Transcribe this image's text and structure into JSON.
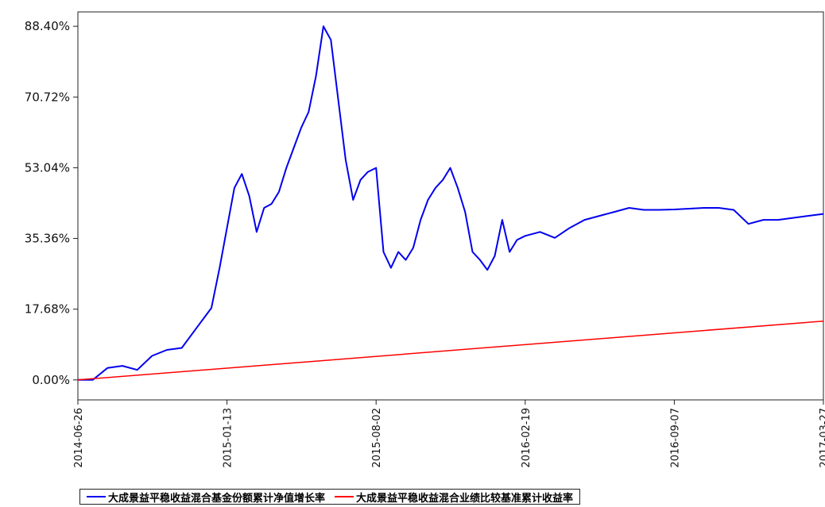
{
  "chart_data": {
    "type": "line",
    "ylim": [
      -5,
      92
    ],
    "yticks": [
      "0.00%",
      "17.68%",
      "35.36%",
      "53.04%",
      "70.72%",
      "88.40%"
    ],
    "ytick_values": [
      0,
      17.68,
      35.36,
      53.04,
      70.72,
      88.4
    ],
    "xticks": [
      "2014-06-26",
      "2015-01-13",
      "2015-08-02",
      "2016-02-19",
      "2016-09-07",
      "2017-03-27"
    ],
    "grid": false,
    "legend_position": "bottom",
    "series": [
      {
        "name": "大成景益平稳收益混合基金份额累计净值增长率",
        "color": "#0000ee",
        "x": [
          "2014-06-26",
          "2014-07-16",
          "2014-08-05",
          "2014-08-25",
          "2014-09-14",
          "2014-10-04",
          "2014-10-24",
          "2014-11-13",
          "2014-12-03",
          "2014-12-23",
          "2015-01-03",
          "2015-01-13",
          "2015-01-23",
          "2015-02-02",
          "2015-02-12",
          "2015-02-22",
          "2015-03-04",
          "2015-03-14",
          "2015-03-24",
          "2015-04-03",
          "2015-04-13",
          "2015-04-23",
          "2015-05-03",
          "2015-05-13",
          "2015-05-23",
          "2015-06-02",
          "2015-06-12",
          "2015-06-22",
          "2015-07-02",
          "2015-07-12",
          "2015-07-22",
          "2015-08-02",
          "2015-08-12",
          "2015-08-22",
          "2015-09-01",
          "2015-09-11",
          "2015-09-21",
          "2015-10-01",
          "2015-10-11",
          "2015-10-21",
          "2015-10-31",
          "2015-11-10",
          "2015-11-20",
          "2015-11-30",
          "2015-12-10",
          "2015-12-20",
          "2015-12-30",
          "2016-01-09",
          "2016-01-19",
          "2016-01-29",
          "2016-02-08",
          "2016-02-19",
          "2016-03-10",
          "2016-03-30",
          "2016-04-19",
          "2016-05-09",
          "2016-05-29",
          "2016-06-18",
          "2016-07-08",
          "2016-07-28",
          "2016-08-17",
          "2016-09-07",
          "2016-09-27",
          "2016-10-17",
          "2016-11-06",
          "2016-11-26",
          "2016-12-16",
          "2017-01-05",
          "2017-01-25",
          "2017-02-14",
          "2017-03-06",
          "2017-03-27"
        ],
        "values": [
          0.0,
          0.0,
          3.0,
          3.5,
          2.5,
          6.0,
          7.5,
          8.0,
          13.0,
          18.0,
          28.0,
          38.0,
          48.0,
          51.5,
          46.0,
          37.0,
          43.0,
          44.0,
          47.0,
          53.0,
          58.0,
          63.0,
          67.0,
          76.0,
          88.4,
          85.0,
          70.0,
          55.0,
          45.0,
          50.0,
          52.0,
          53.0,
          32.0,
          28.0,
          32.0,
          30.0,
          33.0,
          40.0,
          45.0,
          48.0,
          50.0,
          53.0,
          48.0,
          42.0,
          32.0,
          30.0,
          27.5,
          31.0,
          40.0,
          32.0,
          35.0,
          36.0,
          37.0,
          35.5,
          38.0,
          40.0,
          41.0,
          42.0,
          43.0,
          42.5,
          42.5,
          42.6,
          42.8,
          43.0,
          43.0,
          42.5,
          39.0,
          40.0,
          40.0,
          40.5,
          41.0,
          41.5
        ]
      },
      {
        "name": "大成景益平稳收益混合业绩比较基准累计收益率",
        "color": "#ff0000",
        "x": [
          "2014-06-26",
          "2017-03-27"
        ],
        "values": [
          0.0,
          14.7
        ]
      }
    ]
  }
}
